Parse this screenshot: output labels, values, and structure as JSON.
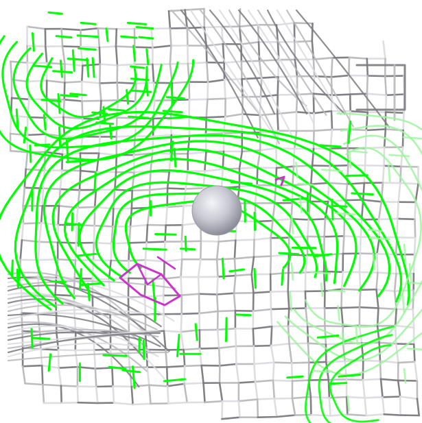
{
  "viewport": {
    "background": "#ffffff"
  },
  "colors": {
    "grey_mesh": "#b9b9bd",
    "grey_mesh_dark": "#7a7a80",
    "grey_mesh_light": "#dcdce0",
    "green_mesh": "#00ff00",
    "green_mesh_dark": "#00cc00",
    "green_mesh_light": "#9cf59c",
    "magenta_mesh": "#cc33cc",
    "center_atom": "#c8c8d2"
  },
  "meshes": [
    {
      "name": "grey-density-mesh",
      "color_key": "grey_mesh"
    },
    {
      "name": "green-density-mesh",
      "color_key": "green_mesh"
    },
    {
      "name": "magenta-density-mesh",
      "color_key": "magenta_mesh"
    }
  ],
  "atom": {
    "name": "center-atom-sphere",
    "color_key": "center_atom"
  }
}
